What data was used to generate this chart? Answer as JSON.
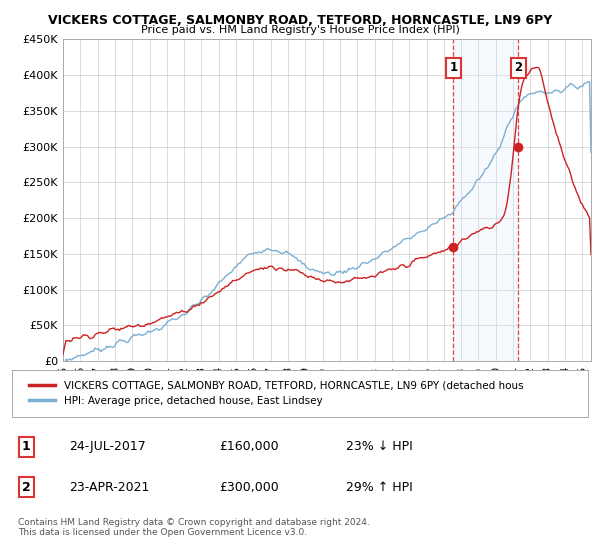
{
  "title1": "VICKERS COTTAGE, SALMONBY ROAD, TETFORD, HORNCASTLE, LN9 6PY",
  "title2": "Price paid vs. HM Land Registry's House Price Index (HPI)",
  "ylim": [
    0,
    450000
  ],
  "yticks": [
    0,
    50000,
    100000,
    150000,
    200000,
    250000,
    300000,
    350000,
    400000,
    450000
  ],
  "ytick_labels": [
    "£0",
    "£50K",
    "£100K",
    "£150K",
    "£200K",
    "£250K",
    "£300K",
    "£350K",
    "£400K",
    "£450K"
  ],
  "sale1_year": 2017.55,
  "sale1_price": 160000,
  "sale2_year": 2021.31,
  "sale2_price": 300000,
  "hpi_color": "#7bafd4",
  "price_color": "#cc2222",
  "shade_color": "#ddeeff",
  "vline_color": "#dd3333",
  "legend_label1": "VICKERS COTTAGE, SALMONBY ROAD, TETFORD, HORNCASTLE, LN9 6PY (detached hous",
  "legend_label2": "HPI: Average price, detached house, East Lindsey",
  "table_row1_num": "1",
  "table_row1_date": "24-JUL-2017",
  "table_row1_price": "£160,000",
  "table_row1_hpi": "23% ↓ HPI",
  "table_row2_num": "2",
  "table_row2_date": "23-APR-2021",
  "table_row2_price": "£300,000",
  "table_row2_hpi": "29% ↑ HPI",
  "footnote": "Contains HM Land Registry data © Crown copyright and database right 2024.\nThis data is licensed under the Open Government Licence v3.0.",
  "background_color": "#ffffff",
  "grid_color": "#cccccc"
}
